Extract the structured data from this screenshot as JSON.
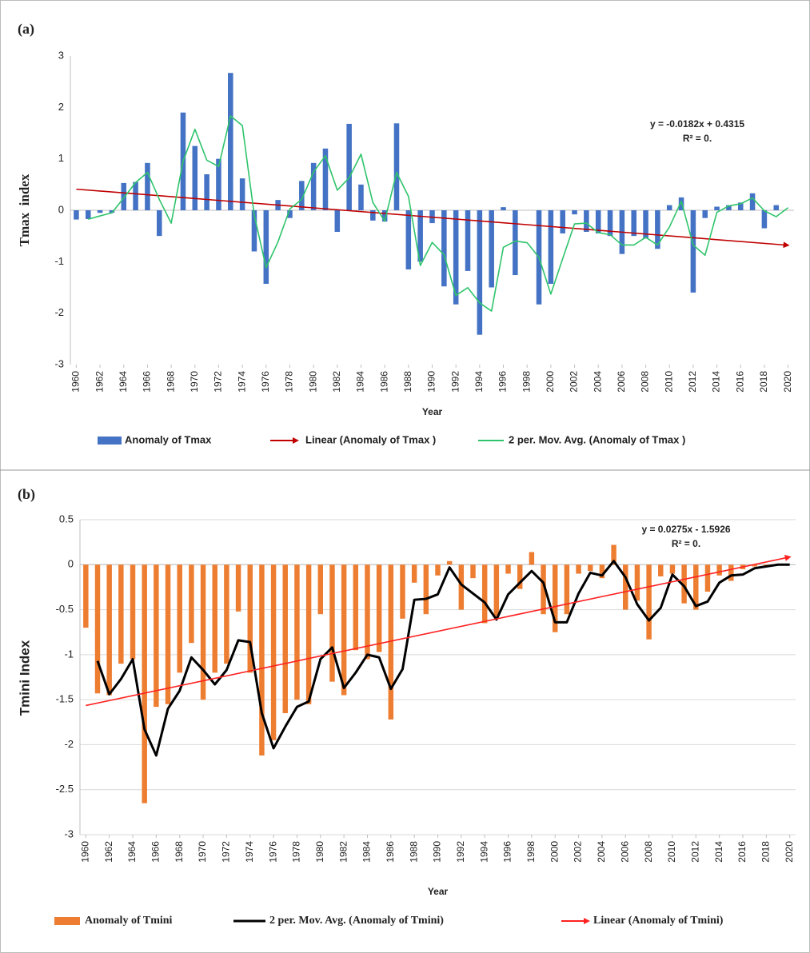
{
  "chart_data": [
    {
      "type": "bar",
      "panel_label": "(a)",
      "ylabel": "Tmax  index",
      "xlabel": "Year",
      "annotations": [
        "y = -0.0182x + 0.4315",
        "R² = 0."
      ],
      "x": [
        1960,
        1961,
        1962,
        1963,
        1964,
        1965,
        1966,
        1967,
        1968,
        1969,
        1970,
        1971,
        1972,
        1973,
        1974,
        1975,
        1976,
        1977,
        1978,
        1979,
        1980,
        1981,
        1982,
        1983,
        1984,
        1985,
        1986,
        1987,
        1988,
        1989,
        1990,
        1991,
        1992,
        1993,
        1994,
        1995,
        1996,
        1997,
        1998,
        1999,
        2000,
        2001,
        2002,
        2003,
        2004,
        2005,
        2006,
        2007,
        2008,
        2009,
        2010,
        2011,
        2012,
        2013,
        2014,
        2015,
        2016,
        2017,
        2018,
        2019,
        2020
      ],
      "xlim": [
        1959.5,
        2020.5
      ],
      "xticks": [
        1960,
        1962,
        1964,
        1966,
        1968,
        1970,
        1972,
        1974,
        1976,
        1978,
        1980,
        1982,
        1984,
        1986,
        1988,
        1990,
        1992,
        1994,
        1996,
        1998,
        2000,
        2002,
        2004,
        2006,
        2008,
        2010,
        2012,
        2014,
        2016,
        2018,
        2020
      ],
      "ylim": [
        -3,
        3
      ],
      "yticks": [
        -3,
        -2,
        -1,
        0,
        1,
        2,
        3
      ],
      "grid": false,
      "series": [
        {
          "name": "Anomaly of Tmax",
          "type": "bar",
          "color": "#4472c4",
          "values": [
            -0.18,
            -0.17,
            -0.05,
            -0.05,
            0.53,
            0.55,
            0.92,
            -0.5,
            0,
            1.9,
            1.25,
            0.7,
            1.0,
            2.67,
            0.62,
            -0.8,
            -1.43,
            0.2,
            -0.15,
            0.57,
            0.92,
            1.2,
            -0.42,
            1.68,
            0.5,
            -0.2,
            -0.22,
            1.69,
            -1.15,
            -1.0,
            -0.25,
            -1.48,
            -1.83,
            -1.18,
            -2.42,
            -1.5,
            0.06,
            -1.26,
            0,
            -1.83,
            -1.43,
            -0.45,
            -0.08,
            -0.42,
            -0.45,
            -0.5,
            -0.85,
            -0.5,
            -0.55,
            -0.75,
            0.1,
            0.25,
            -1.6,
            -0.15,
            0.07,
            0.1,
            0.15,
            0.33,
            -0.35,
            0.1,
            0
          ]
        },
        {
          "name": "Linear (Anomaly of Tmax )",
          "type": "trend",
          "color": "#c00000",
          "x": [
            1960,
            2020
          ],
          "values": [
            0.41,
            -0.68
          ]
        },
        {
          "name": "2 per. Mov. Avg. (Anomaly of Tmax )",
          "type": "line",
          "color": "#2fc46b",
          "values": [
            null,
            -0.175,
            -0.11,
            -0.05,
            0.24,
            0.54,
            0.735,
            0.21,
            -0.25,
            0.95,
            1.575,
            0.975,
            0.85,
            1.835,
            1.645,
            -0.09,
            -1.115,
            -0.615,
            0.025,
            0.21,
            0.745,
            1.06,
            0.39,
            0.63,
            1.09,
            0.15,
            -0.21,
            0.735,
            0.27,
            -1.075,
            -0.625,
            -0.865,
            -1.655,
            -1.505,
            -1.8,
            -1.96,
            -0.72,
            -0.6,
            -0.63,
            -0.915,
            -1.63,
            -0.94,
            -0.265,
            -0.25,
            -0.435,
            -0.475,
            -0.675,
            -0.675,
            -0.525,
            -0.675,
            -0.325,
            0.175,
            -0.675,
            -0.875,
            -0.04,
            0.085,
            0.125,
            0.24,
            -0.01,
            -0.125,
            0.05
          ]
        }
      ]
    },
    {
      "type": "bar",
      "panel_label": "(b)",
      "ylabel": "Tmini Index",
      "xlabel": "Year",
      "annotations": [
        "y = 0.0275x - 1.5926",
        "R² = 0."
      ],
      "x": [
        1960,
        1961,
        1962,
        1963,
        1964,
        1965,
        1966,
        1967,
        1968,
        1969,
        1970,
        1971,
        1972,
        1973,
        1974,
        1975,
        1976,
        1977,
        1978,
        1979,
        1980,
        1981,
        1982,
        1983,
        1984,
        1985,
        1986,
        1987,
        1988,
        1989,
        1990,
        1991,
        1992,
        1993,
        1994,
        1995,
        1996,
        1997,
        1998,
        1999,
        2000,
        2001,
        2002,
        2003,
        2004,
        2005,
        2006,
        2007,
        2008,
        2009,
        2010,
        2011,
        2012,
        2013,
        2014,
        2015,
        2016,
        2017,
        2018,
        2019,
        2020
      ],
      "xlim": [
        1959.5,
        2020.5
      ],
      "xticks": [
        1960,
        1962,
        1964,
        1966,
        1968,
        1970,
        1972,
        1974,
        1976,
        1978,
        1980,
        1982,
        1984,
        1986,
        1988,
        1990,
        1992,
        1994,
        1996,
        1998,
        2000,
        2002,
        2004,
        2006,
        2008,
        2010,
        2012,
        2014,
        2016,
        2018,
        2020
      ],
      "ylim": [
        -3,
        0.5
      ],
      "yticks": [
        -3,
        -2.5,
        -2,
        -1.5,
        -1,
        -0.5,
        0,
        0.5
      ],
      "grid": true,
      "series": [
        {
          "name": "Anomaly of Tmini",
          "type": "bar",
          "color": "#ed7d31",
          "values": [
            -0.7,
            -1.43,
            -1.45,
            -1.1,
            -1.05,
            -2.65,
            -1.58,
            -1.55,
            -1.2,
            -0.87,
            -1.5,
            -1.2,
            -1.1,
            -0.52,
            -1.2,
            -2.12,
            -1.95,
            -1.65,
            -1.5,
            -1.55,
            -0.55,
            -1.3,
            -1.45,
            -0.95,
            -1.05,
            -0.97,
            -1.72,
            -0.6,
            -0.2,
            -0.55,
            -0.12,
            0.04,
            -0.5,
            -0.15,
            -0.65,
            -0.58,
            -0.1,
            -0.27,
            0.14,
            -0.55,
            -0.75,
            -0.55,
            -0.1,
            -0.07,
            -0.15,
            0.22,
            -0.5,
            -0.4,
            -0.83,
            -0.13,
            -0.1,
            -0.43,
            -0.5,
            -0.3,
            -0.12,
            -0.18,
            -0.05,
            -0.02,
            -0.02,
            0.01,
            0
          ]
        },
        {
          "name": "2 per. Mov. Avg. (Anomaly of Tmini)",
          "type": "line",
          "color": "#000000",
          "values": [
            null,
            -1.07,
            -1.44,
            -1.27,
            -1.05,
            -1.83,
            -2.12,
            -1.6,
            -1.4,
            -1.03,
            -1.17,
            -1.33,
            -1.17,
            -0.84,
            -0.86,
            -1.65,
            -2.04,
            -1.8,
            -1.58,
            -1.52,
            -1.05,
            -0.92,
            -1.37,
            -1.2,
            -1.0,
            -1.03,
            -1.38,
            -1.16,
            -0.39,
            -0.38,
            -0.33,
            -0.03,
            -0.22,
            -0.32,
            -0.42,
            -0.61,
            -0.33,
            -0.2,
            -0.07,
            -0.2,
            -0.64,
            -0.64,
            -0.32,
            -0.09,
            -0.12,
            0.04,
            -0.14,
            -0.44,
            -0.62,
            -0.48,
            -0.11,
            -0.24,
            -0.46,
            -0.41,
            -0.2,
            -0.12,
            -0.11,
            -0.04,
            -0.02,
            0.0,
            0.0
          ]
        },
        {
          "name": "Linear (Anomaly of Tmini)",
          "type": "trend",
          "color": "#ff2020",
          "x": [
            1960,
            2020
          ],
          "values": [
            -1.565,
            0.085
          ]
        }
      ]
    }
  ]
}
